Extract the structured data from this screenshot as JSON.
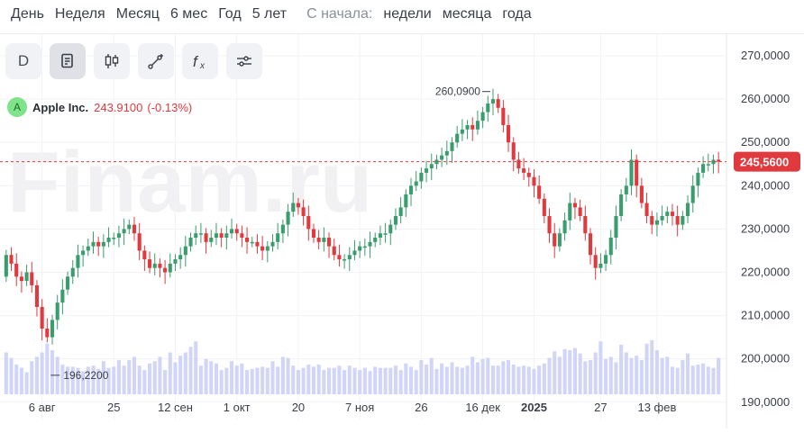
{
  "periods": {
    "items": [
      "День",
      "Неделя",
      "Месяц",
      "6 мес",
      "Год",
      "5 лет"
    ],
    "since_label": "С начала:",
    "since_items": [
      "недели",
      "месяца",
      "года"
    ]
  },
  "toolbar": {
    "d_label": "D",
    "buttons": [
      "notes-icon",
      "candles-icon",
      "draw-line-icon",
      "function-icon",
      "settings-sliders-icon"
    ]
  },
  "legend": {
    "badge": "A",
    "name": "Apple Inc.",
    "value": "243.9100",
    "change": "(-0.13%)"
  },
  "watermark": "Finam.ru",
  "colors": {
    "up": "#3a9d6e",
    "down": "#e0393e",
    "volume": "#c9cff7",
    "current": "#e0393e"
  },
  "chart_data": {
    "type": "candlestick",
    "title": "",
    "xlabel": "",
    "ylabel": "",
    "ylim": [
      186,
      275
    ],
    "y_ticks": [
      "270,0000",
      "260,0000",
      "250,0000",
      "240,0000",
      "230,0000",
      "220,0000",
      "210,0000",
      "200,0000",
      "190,0000"
    ],
    "y_tick_values": [
      270,
      260,
      250,
      240,
      230,
      220,
      210,
      200,
      190
    ],
    "x_tick_labels": [
      "6 авг",
      "25",
      "12 сен",
      "1 окт",
      "20",
      "7 ноя",
      "26",
      "16 дек",
      "2025",
      "27",
      "13 фев"
    ],
    "x_tick_index": [
      7,
      21,
      33,
      45,
      57,
      69,
      81,
      93,
      103,
      116,
      127
    ],
    "annotations": {
      "high_label": "260,0900",
      "high_value": 260.09,
      "low_label": "196,2200",
      "low_value": 196.22
    },
    "current_price_label": "245,5600",
    "current_price": 245.56,
    "close_series": [
      224,
      222,
      219,
      218,
      220,
      217,
      212,
      207,
      205,
      209,
      213,
      216,
      219,
      221,
      224,
      225,
      226,
      227,
      226,
      227,
      228,
      228,
      229,
      230,
      231,
      229,
      225,
      223,
      221,
      222,
      221,
      220,
      222,
      223,
      224,
      226,
      228,
      229,
      229,
      227,
      228,
      229,
      228,
      229,
      230,
      229,
      228,
      227,
      227,
      226,
      225,
      226,
      227,
      229,
      231,
      234,
      236,
      235,
      233,
      230,
      228,
      227,
      228,
      226,
      224,
      223,
      223,
      224,
      225,
      226,
      226,
      227,
      228,
      229,
      229,
      231,
      233,
      235,
      238,
      240,
      241,
      243,
      244,
      245,
      246,
      247,
      248,
      250,
      252,
      253,
      254,
      253,
      255,
      257,
      259,
      260,
      258,
      254,
      250,
      246,
      244,
      243,
      242,
      240,
      237,
      233,
      229,
      226,
      229,
      232,
      236,
      235,
      233,
      229,
      224,
      221,
      222,
      224,
      228,
      233,
      238,
      240,
      246,
      240,
      236,
      233,
      231,
      232,
      233,
      234,
      233,
      231,
      233,
      236,
      240,
      243,
      245,
      245,
      246,
      245.56
    ],
    "open_series": [
      219,
      224,
      222,
      219,
      218,
      220,
      217,
      212,
      207,
      205,
      209,
      213,
      216,
      219,
      221,
      224,
      225,
      226,
      227,
      226,
      227,
      228,
      228,
      229,
      230,
      231,
      229,
      225,
      223,
      221,
      222,
      221,
      220,
      222,
      223,
      224,
      226,
      228,
      229,
      229,
      227,
      228,
      229,
      228,
      229,
      230,
      229,
      228,
      227,
      227,
      226,
      225,
      226,
      227,
      229,
      231,
      234,
      236,
      235,
      233,
      230,
      228,
      227,
      228,
      226,
      224,
      223,
      223,
      224,
      225,
      226,
      226,
      227,
      228,
      229,
      229,
      231,
      233,
      235,
      238,
      240,
      241,
      243,
      244,
      245,
      246,
      247,
      248,
      250,
      252,
      253,
      254,
      253,
      255,
      257,
      259,
      260,
      258,
      254,
      250,
      246,
      244,
      243,
      242,
      240,
      237,
      233,
      229,
      226,
      229,
      232,
      236,
      235,
      233,
      229,
      224,
      221,
      222,
      224,
      228,
      233,
      238,
      240,
      246,
      240,
      236,
      233,
      231,
      232,
      233,
      234,
      233,
      231,
      233,
      236,
      240,
      243,
      245,
      245,
      246
    ],
    "volume_series": [
      38,
      33,
      27,
      24,
      20,
      30,
      34,
      38,
      46,
      40,
      34,
      27,
      25,
      25,
      24,
      21,
      25,
      26,
      23,
      30,
      24,
      25,
      31,
      26,
      31,
      34,
      26,
      22,
      28,
      30,
      34,
      22,
      38,
      29,
      35,
      38,
      43,
      48,
      26,
      32,
      30,
      28,
      22,
      24,
      30,
      26,
      28,
      22,
      23,
      24,
      25,
      24,
      30,
      25,
      34,
      33,
      26,
      22,
      24,
      27,
      25,
      27,
      22,
      24,
      24,
      26,
      22,
      26,
      24,
      22,
      24,
      21,
      25,
      24,
      24,
      24,
      26,
      22,
      28,
      25,
      22,
      31,
      27,
      33,
      23,
      28,
      25,
      29,
      25,
      24,
      26,
      34,
      29,
      32,
      33,
      26,
      26,
      30,
      31,
      27,
      25,
      26,
      25,
      23,
      26,
      28,
      33,
      39,
      34,
      41,
      40,
      42,
      37,
      30,
      31,
      38,
      48,
      32,
      34,
      29,
      45,
      38,
      33,
      35,
      31,
      46,
      49,
      40,
      33,
      34,
      25,
      24,
      31,
      37,
      26,
      27,
      28,
      25,
      24,
      33
    ]
  }
}
